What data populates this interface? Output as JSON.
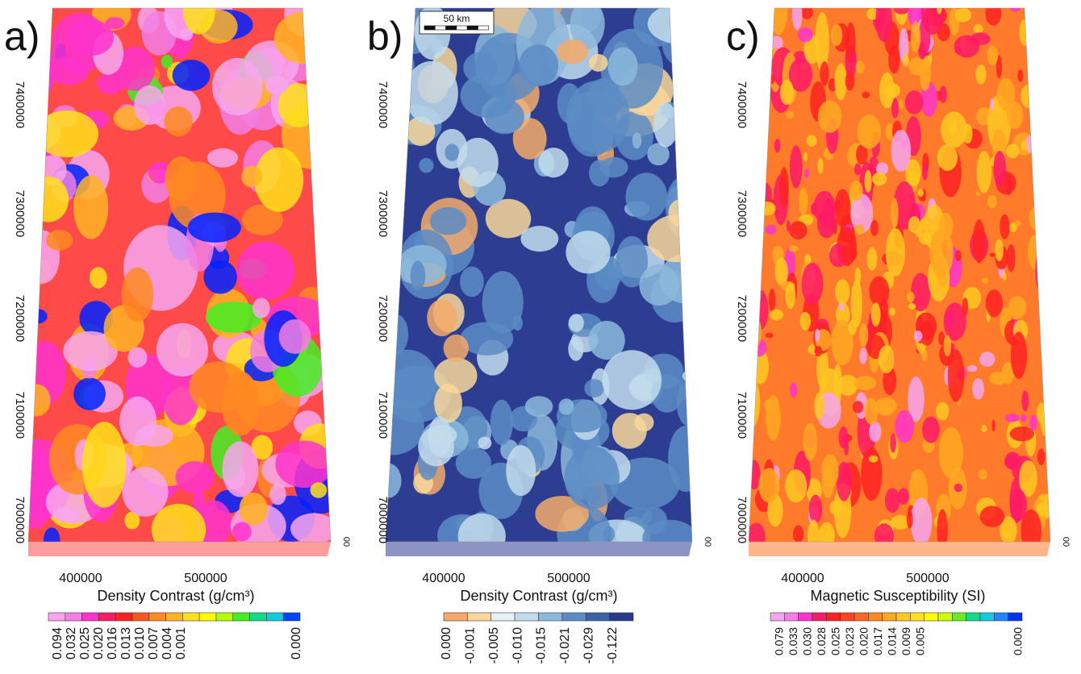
{
  "panels": [
    {
      "letter": "a)",
      "yticks": [
        "7400000",
        "7300000",
        "7200000",
        "7100000",
        "7000000"
      ],
      "xticks": [
        "400000",
        "500000"
      ],
      "depth": "00",
      "title": "Density Contrast (g/cm³)",
      "colorbar": {
        "colors": [
          "#f7a6ee",
          "#f27fe4",
          "#ff33cc",
          "#ff1a66",
          "#ff2222",
          "#ff5522",
          "#ff8a22",
          "#ffb422",
          "#ffe21a",
          "#ffff00",
          "#b4ff00",
          "#44ee22",
          "#11dd88",
          "#11ccdd",
          "#0044ff"
        ],
        "labels": [
          "0.094",
          "0.032",
          "0.025",
          "0.020",
          "0.016",
          "0.013",
          "0.010",
          "0.007",
          "0.004",
          "0.001",
          "0.000"
        ]
      }
    },
    {
      "letter": "b)",
      "yticks": [
        "7400000",
        "7300000",
        "7200000",
        "7100000",
        "7000000"
      ],
      "xticks": [
        "400000",
        "500000"
      ],
      "depth": "00",
      "title": "Density Contrast (g/cm³)",
      "scale_bar": "50 km",
      "colorbar": {
        "colors": [
          "#f4aa6a",
          "#f9d79a",
          "#e4f2f8",
          "#c2dcec",
          "#8cb8dc",
          "#5c8cc4",
          "#3a62a6",
          "#28388e"
        ],
        "labels": [
          "0.000",
          "-0.001",
          "-0.005",
          "-0.010",
          "-0.015",
          "-0.021",
          "-0.029",
          "-0.122"
        ]
      }
    },
    {
      "letter": "c)",
      "yticks": [
        "7400000",
        "7300000",
        "7200000",
        "7100000",
        "7000000"
      ],
      "xticks": [
        "400000",
        "500000"
      ],
      "depth": "00",
      "title": "Magnetic Susceptibility (SI)",
      "colorbar": {
        "colors": [
          "#f7a6ee",
          "#f27fe4",
          "#ff33cc",
          "#ff1a66",
          "#ff2222",
          "#ff4422",
          "#ff6622",
          "#ff8a22",
          "#ffa822",
          "#ffc822",
          "#ffe21a",
          "#ffff00",
          "#ccff00",
          "#66ee22",
          "#11dd88",
          "#11ccdd",
          "#2288ff",
          "#0033ee"
        ],
        "labels": [
          "0.079",
          "0.033",
          "0.030",
          "0.028",
          "0.025",
          "0.023",
          "0.020",
          "0.017",
          "0.014",
          "0.009",
          "0.005",
          "0.000"
        ]
      }
    }
  ]
}
